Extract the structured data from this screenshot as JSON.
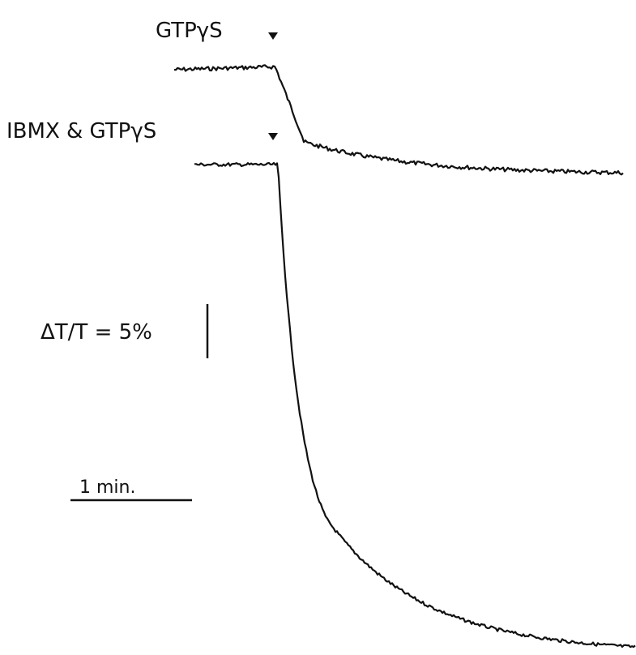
{
  "figure": {
    "labels": {
      "trace_a": "GTPγS",
      "trace_b": "IBMX & GTPγS",
      "scale_y": "ΔT/T = 5%",
      "scale_x": "1 min."
    }
  }
}
